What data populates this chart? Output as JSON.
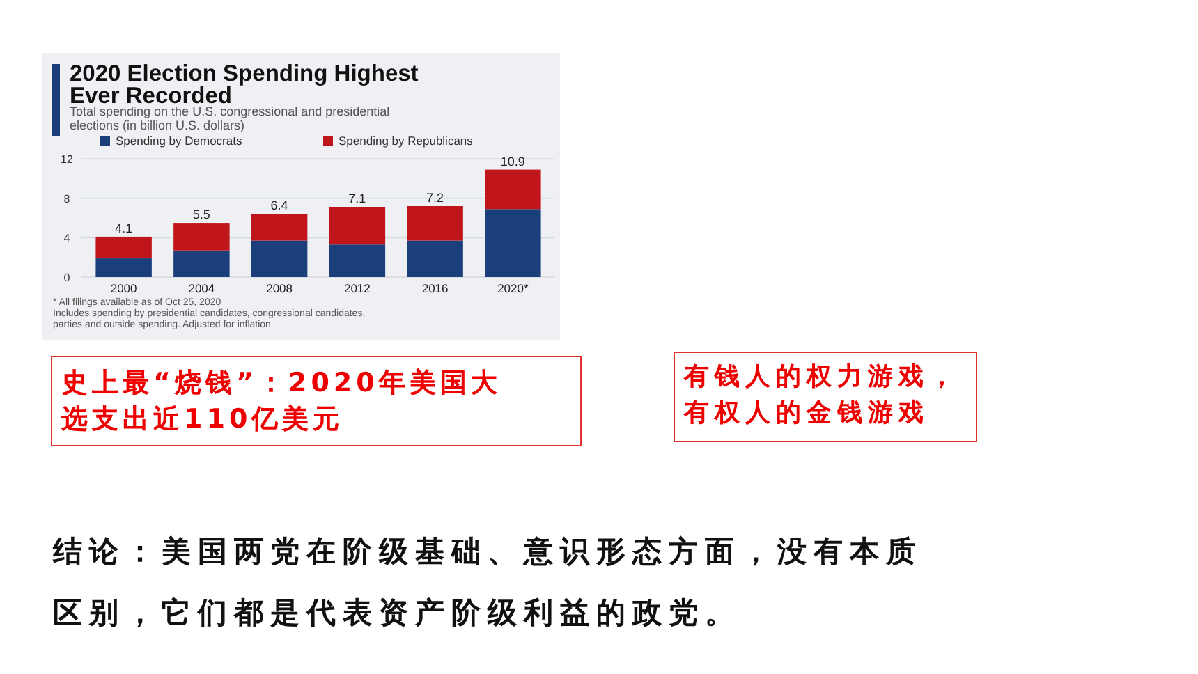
{
  "chart_data": {
    "type": "bar",
    "stacked": true,
    "title": "2020 Election Spending Highest\nEver Recorded",
    "subtitle": "Total spending on the U.S. congressional and presidential\nelections (in billion U.S. dollars)",
    "categories": [
      "2000",
      "2004",
      "2008",
      "2012",
      "2016",
      "2020*"
    ],
    "series": [
      {
        "name": "Spending by Democrats",
        "color": "#1a3f7a",
        "values": [
          1.9,
          2.7,
          3.7,
          3.3,
          3.7,
          6.9
        ]
      },
      {
        "name": "Spending by Republicans",
        "color": "#c0161b",
        "values": [
          2.2,
          2.8,
          2.7,
          3.8,
          3.5,
          4.0
        ]
      }
    ],
    "totals": [
      "4.1",
      "5.5",
      "6.4",
      "7.1",
      "7.2",
      "10.9"
    ],
    "ylim": [
      0,
      12
    ],
    "yticks": [
      0,
      4,
      8,
      12
    ],
    "grid": "y",
    "legend": "top left",
    "annotations": [
      "* All filings available as of Oct 25, 2020",
      "Includes spending by presidential candidates, congressional candidates,\nparties and outside spending. Adjusted for inflation",
      "史上最“烧钱”：2020年美国大选支出近110亿美元",
      "有钱人的权力游戏，有权人的金钱游戏",
      "结论：美国两党在阶级基础、意识形态方面，没有本质区别，它们都是代表资产阶级利益的政党。"
    ]
  }
}
